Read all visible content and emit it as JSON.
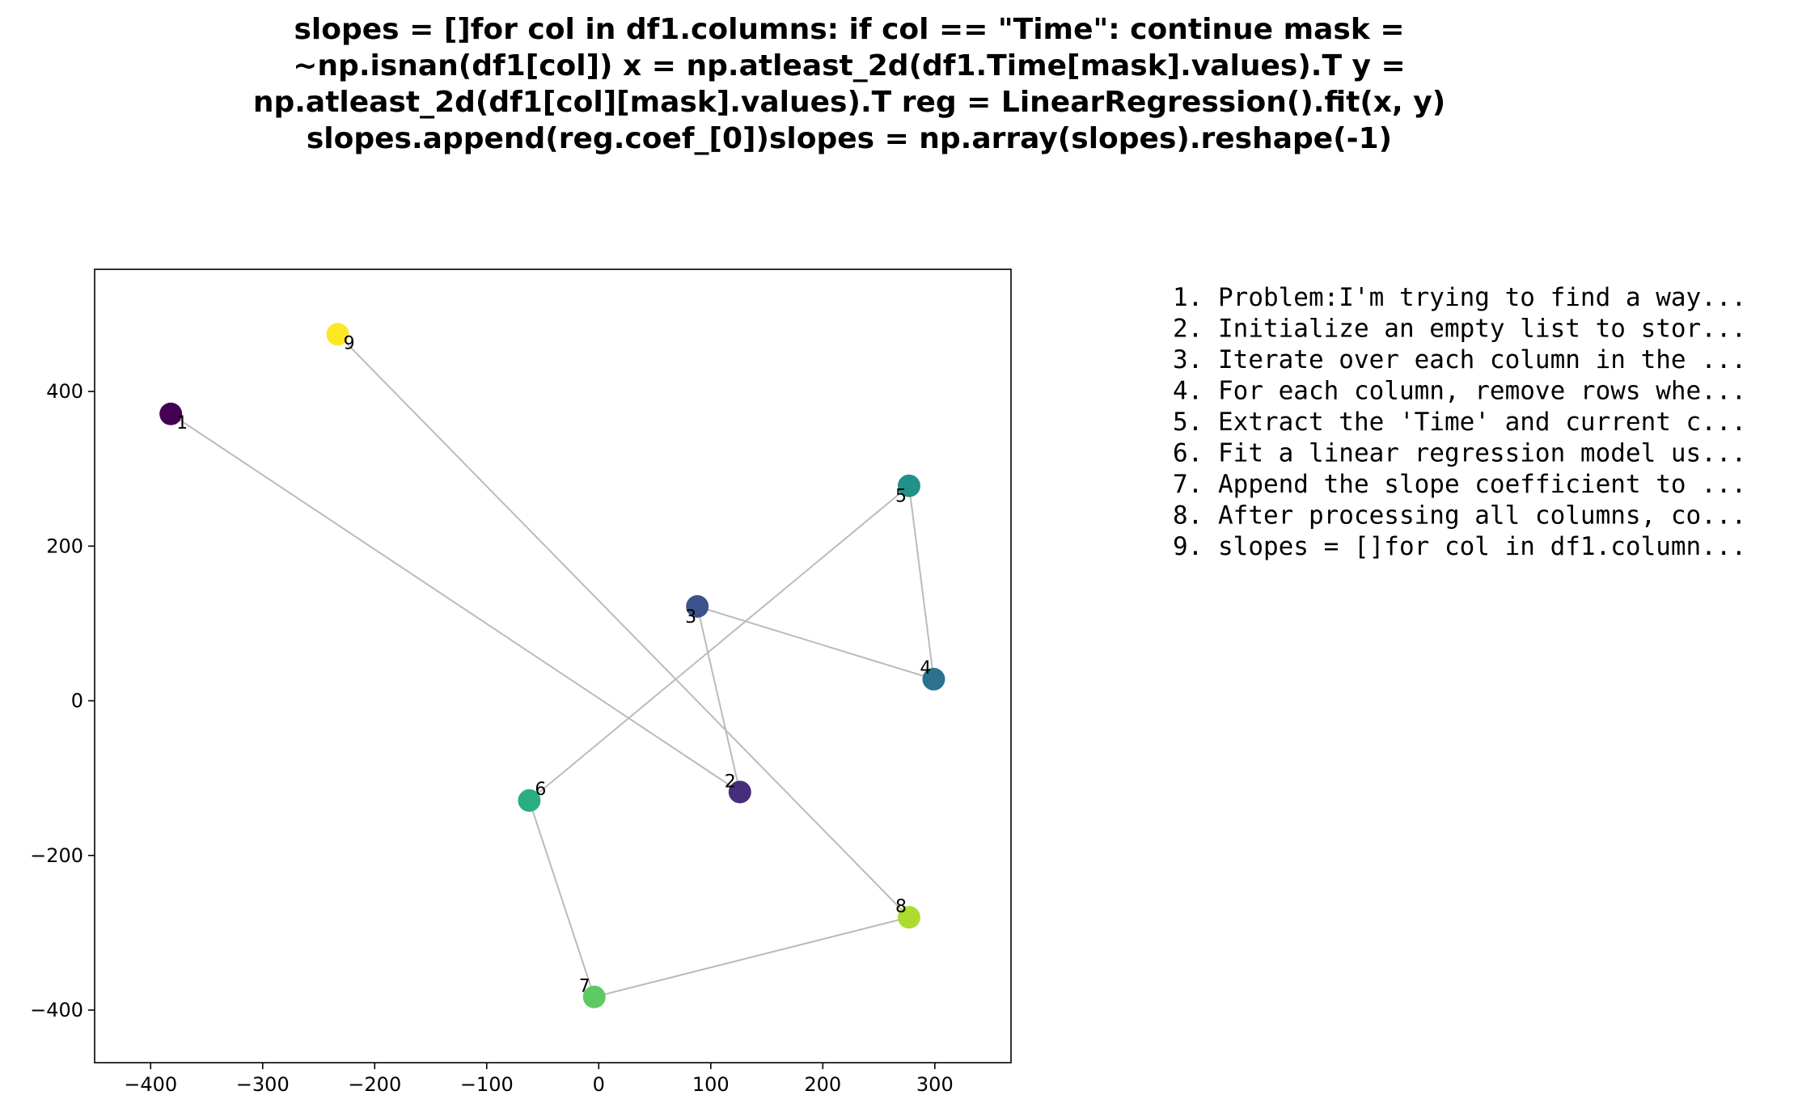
{
  "chart_data": {
    "type": "scatter",
    "title_lines": [
      "slopes = []for col in df1.columns:    if col == \"Time\":        continue    mask =",
      "~np.isnan(df1[col])    x = np.atleast_2d(df1.Time[mask].values).T    y =",
      "np.atleast_2d(df1[col][mask].values).T    reg = LinearRegression().fit(x, y)",
      "slopes.append(reg.coef_[0])slopes = np.array(slopes).reshape(-1)"
    ],
    "xlabel": "",
    "ylabel": "",
    "xlim": [
      -450,
      368
    ],
    "ylim": [
      -468,
      558
    ],
    "xticks": [
      -400,
      -300,
      -200,
      -100,
      0,
      100,
      200,
      300
    ],
    "xtick_labels": [
      "−400",
      "−300",
      "−200",
      "−100",
      "0",
      "100",
      "200",
      "300"
    ],
    "yticks": [
      -400,
      -200,
      0,
      200,
      400
    ],
    "ytick_labels": [
      "−400",
      "−200",
      "0",
      "200",
      "400"
    ],
    "grid": false,
    "points": [
      {
        "label": "1",
        "x": -382,
        "y": 371,
        "color": "#440154"
      },
      {
        "label": "2",
        "x": 126,
        "y": -118,
        "color": "#472d7b"
      },
      {
        "label": "3",
        "x": 88,
        "y": 122,
        "color": "#3b528b"
      },
      {
        "label": "4",
        "x": 299,
        "y": 28,
        "color": "#2c728e"
      },
      {
        "label": "5",
        "x": 277,
        "y": 278,
        "color": "#21918c"
      },
      {
        "label": "6",
        "x": -62,
        "y": -129,
        "color": "#28ae80"
      },
      {
        "label": "7",
        "x": -4,
        "y": -383,
        "color": "#5ec962"
      },
      {
        "label": "8",
        "x": 277,
        "y": -280,
        "color": "#addc30"
      },
      {
        "label": "9",
        "x": -233,
        "y": 474,
        "color": "#fde725"
      }
    ],
    "connector_color": "#bbbbbb",
    "legend": {
      "placement": "right",
      "entries": [
        "1. Problem:I'm trying to find a way...",
        "2. Initialize an empty list to stor...",
        "3. Iterate over each column in the ...",
        "4. For each column, remove rows whe...",
        "5. Extract the 'Time' and current c...",
        "6. Fit a linear regression model us...",
        "7. Append the slope coefficient to ...",
        "8. After processing all columns, co...",
        "9. slopes = []for col in df1.column..."
      ]
    }
  }
}
